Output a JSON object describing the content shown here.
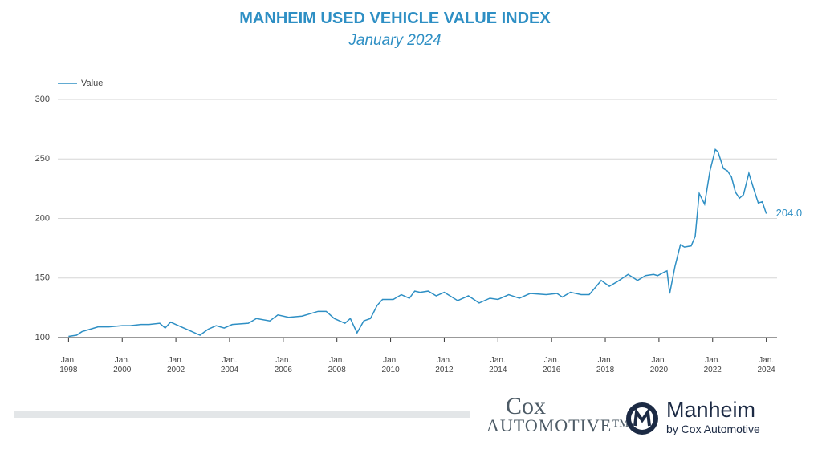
{
  "chart_data": {
    "type": "line",
    "title": "MANHEIM USED VEHICLE VALUE INDEX",
    "subtitle": "January 2024",
    "x": [
      1998.0,
      1998.3,
      1998.5,
      1998.8,
      1999.1,
      1999.5,
      2000.0,
      2000.3,
      2000.7,
      2001.0,
      2001.4,
      2001.6,
      2001.8,
      2002.2,
      2002.5,
      2002.9,
      2003.2,
      2003.5,
      2003.8,
      2004.1,
      2004.7,
      2005.0,
      2005.5,
      2005.8,
      2006.2,
      2006.7,
      2007.3,
      2007.6,
      2007.9,
      2008.3,
      2008.5,
      2008.75,
      2009.0,
      2009.25,
      2009.5,
      2009.7,
      2010.1,
      2010.4,
      2010.7,
      2010.9,
      2011.1,
      2011.4,
      2011.7,
      2012.0,
      2012.5,
      2012.9,
      2013.3,
      2013.7,
      2014.0,
      2014.4,
      2014.8,
      2015.2,
      2015.8,
      2016.2,
      2016.4,
      2016.7,
      2017.1,
      2017.4,
      2017.55,
      2017.85,
      2018.15,
      2018.45,
      2018.85,
      2019.2,
      2019.5,
      2019.8,
      2019.95,
      2020.2,
      2020.3,
      2020.4,
      2020.6,
      2020.8,
      2020.95,
      2021.2,
      2021.35,
      2021.5,
      2021.7,
      2021.9,
      2022.1,
      2022.2,
      2022.4,
      2022.55,
      2022.7,
      2022.85,
      2023.0,
      2023.15,
      2023.35,
      2023.5,
      2023.7,
      2023.85,
      2024.0
    ],
    "series": [
      {
        "name": "Value",
        "color": "#2e8fc4",
        "values": [
          101,
          102,
          105,
          107,
          109,
          109,
          110,
          110,
          111,
          111,
          112,
          108,
          113,
          109,
          106,
          102,
          107,
          110,
          108,
          111,
          112,
          116,
          114,
          119,
          117,
          118,
          122,
          122,
          116,
          112,
          116,
          104,
          114,
          116,
          127,
          132,
          132,
          136,
          133,
          139,
          138,
          139,
          135,
          138,
          131,
          135,
          129,
          133,
          132,
          136,
          133,
          137,
          136,
          137,
          134,
          138,
          136,
          136,
          140,
          148,
          143,
          147,
          153,
          148,
          152,
          153,
          152,
          155,
          156,
          137,
          160,
          178,
          176,
          177,
          185,
          221,
          212,
          240,
          258,
          256,
          242,
          240,
          235,
          222,
          217,
          220,
          238,
          227,
          213,
          214,
          204
        ],
        "value_labels": [
          null,
          null,
          null,
          null,
          null,
          null,
          null,
          null,
          null,
          null,
          null,
          null,
          null,
          null,
          null,
          null,
          null,
          null,
          null,
          null,
          null,
          null,
          null,
          null,
          null,
          null,
          null,
          null,
          null,
          null,
          null,
          null,
          null,
          null,
          null,
          null,
          null,
          null,
          null,
          null,
          null,
          null,
          null,
          null,
          null,
          null,
          null,
          null,
          null,
          null,
          null,
          null,
          null,
          null,
          null,
          null,
          null,
          null,
          null,
          null,
          null,
          null,
          null,
          null,
          null,
          null,
          null,
          null,
          null,
          null,
          null,
          null,
          null,
          null,
          null,
          null,
          null,
          null,
          null,
          null,
          null,
          null,
          null,
          null,
          null,
          null,
          null,
          null,
          null,
          null,
          "204.0"
        ]
      }
    ],
    "xlim": [
      1997.6,
      2024.4
    ],
    "xticks": [
      {
        "value": 1998,
        "label": "Jan.\n1998"
      },
      {
        "value": 2000,
        "label": "Jan.\n2000"
      },
      {
        "value": 2002,
        "label": "Jan.\n2002"
      },
      {
        "value": 2004,
        "label": "Jan.\n2004"
      },
      {
        "value": 2006,
        "label": "Jan.\n2006"
      },
      {
        "value": 2008,
        "label": "Jan.\n2008"
      },
      {
        "value": 2010,
        "label": "Jan.\n2010"
      },
      {
        "value": 2012,
        "label": "Jan.\n2012"
      },
      {
        "value": 2014,
        "label": "Jan.\n2014"
      },
      {
        "value": 2016,
        "label": "Jan.\n2016"
      },
      {
        "value": 2018,
        "label": "Jan.\n2018"
      },
      {
        "value": 2020,
        "label": "Jan.\n2020"
      },
      {
        "value": 2022,
        "label": "Jan.\n2022"
      },
      {
        "value": 2024,
        "label": "Jan.\n2024"
      }
    ],
    "ylim": [
      100,
      300
    ],
    "yticks": [
      100,
      150,
      200,
      250,
      300
    ],
    "grid": true,
    "legend": "top-left"
  },
  "footer": {
    "cox": "Cox",
    "automotive": "AUTOMOTIVE™",
    "manheim": "Manheim",
    "by": "by Cox Automotive"
  }
}
